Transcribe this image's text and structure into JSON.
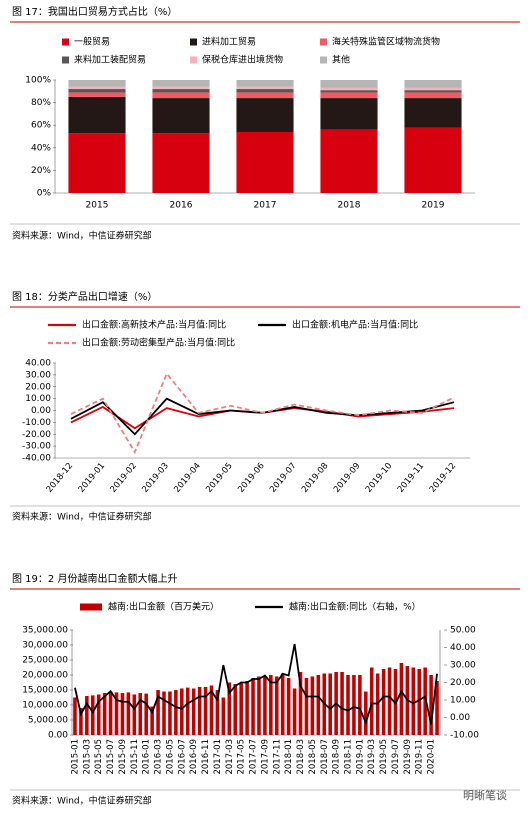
{
  "chart_data": [
    {
      "type": "bar",
      "stacked": true,
      "title": "图 17：我国出口贸易方式占比（%）",
      "source": "资料来源：Wind，中信证券研究部",
      "categories": [
        "2015",
        "2016",
        "2017",
        "2018",
        "2019"
      ],
      "series": [
        {
          "name": "一般贸易",
          "color": "#d7000f",
          "values": [
            53,
            53,
            54,
            56,
            58
          ]
        },
        {
          "name": "进料加工贸易",
          "color": "#231815",
          "values": [
            32,
            31,
            30,
            28,
            26
          ]
        },
        {
          "name": "海关特殊监管区域物流货物",
          "color": "#f05a64",
          "values": [
            4,
            5,
            5,
            5,
            5
          ]
        },
        {
          "name": "来料加工装配贸易",
          "color": "#595757",
          "values": [
            3,
            3,
            3,
            2,
            2
          ]
        },
        {
          "name": "保税仓库进出境货物",
          "color": "#f4b3b8",
          "values": [
            2,
            2,
            2,
            2,
            2
          ]
        },
        {
          "name": "其他",
          "color": "#b5b5b6",
          "values": [
            6,
            6,
            6,
            7,
            7
          ]
        }
      ],
      "ylim": [
        0,
        100
      ],
      "yticks": [
        {
          "value": 0,
          "label": "0%"
        },
        {
          "value": 20,
          "label": "20%"
        },
        {
          "value": 40,
          "label": "40%"
        },
        {
          "value": 60,
          "label": "60%"
        },
        {
          "value": 80,
          "label": "80%"
        },
        {
          "value": 100,
          "label": "100%"
        }
      ]
    },
    {
      "type": "line",
      "title": "图 18：分类产品出口增速（%）",
      "source": "资料来源：Wind，中信证券研究部",
      "categories": [
        "2018-12",
        "2019-01",
        "2019-02",
        "2019-03",
        "2019-04",
        "2019-05",
        "2019-06",
        "2019-07",
        "2019-08",
        "2019-09",
        "2019-10",
        "2019-11",
        "2019-12"
      ],
      "series": [
        {
          "name": "出口金额:高新技术产品:当月值:同比",
          "color": "#d7000f",
          "linestyle": "solid",
          "values": [
            -10,
            3,
            -15,
            2,
            -5,
            0,
            -2,
            2,
            -1,
            -5,
            -3,
            -1,
            2
          ]
        },
        {
          "name": "出口金额:机电产品:当月值:同比",
          "color": "#000000",
          "linestyle": "solid",
          "values": [
            -7,
            7,
            -20,
            10,
            -3,
            0,
            -2,
            3,
            -2,
            -4,
            -2,
            0,
            7
          ]
        },
        {
          "name": "出口金额:劳动密集型产品:当月值:同比",
          "color": "#f08080",
          "linestyle": "dashed",
          "values": [
            -3,
            10,
            -35,
            31,
            -2,
            4,
            -2,
            5,
            0,
            -4,
            0,
            -2,
            11
          ]
        }
      ],
      "ylim": [
        -40,
        40
      ],
      "yticks": [
        {
          "value": -40,
          "label": "-40.00"
        },
        {
          "value": -30,
          "label": "-30.00"
        },
        {
          "value": -20,
          "label": "-20.00"
        },
        {
          "value": -10,
          "label": "-10.00"
        },
        {
          "value": 0,
          "label": "0.00"
        },
        {
          "value": 10,
          "label": "10.00"
        },
        {
          "value": 20,
          "label": "20.00"
        },
        {
          "value": 30,
          "label": "30.00"
        },
        {
          "value": 40,
          "label": "40.00"
        }
      ]
    },
    {
      "type": "combo",
      "title": "图 19：2 月份越南出口金额大幅上升",
      "source": "资料来源：Wind，中信证券研究部",
      "categories": [
        "2015-01",
        null,
        "2015-03",
        null,
        "2015-05",
        null,
        "2015-07",
        null,
        "2015-09",
        null,
        "2015-11",
        null,
        "2016-01",
        null,
        "2016-03",
        null,
        "2016-05",
        null,
        "2016-07",
        null,
        "2016-09",
        null,
        "2016-11",
        null,
        "2017-01",
        null,
        "2017-03",
        null,
        "2017-05",
        null,
        "2017-07",
        null,
        "2017-09",
        null,
        "2017-11",
        null,
        "2018-01",
        null,
        "2018-03",
        null,
        "2018-05",
        null,
        "2018-07",
        null,
        "2018-09",
        null,
        "2018-11",
        null,
        "2019-01",
        null,
        "2019-03",
        null,
        "2019-05",
        null,
        "2019-07",
        null,
        "2019-09",
        null,
        "2019-11",
        null,
        "2020-01",
        null
      ],
      "series": [
        {
          "name": "越南:出口金额（百万美元）",
          "color": "#c00000",
          "kind": "bar",
          "axis": "y",
          "values": [
            12500,
            9000,
            13000,
            13200,
            13500,
            14000,
            14500,
            14200,
            14000,
            14200,
            13500,
            14000,
            13800,
            9500,
            15000,
            14500,
            14500,
            15000,
            15500,
            15800,
            15500,
            16000,
            16000,
            16500,
            15000,
            12500,
            17500,
            17000,
            17500,
            18000,
            19000,
            19500,
            19500,
            20000,
            19500,
            20500,
            19000,
            15500,
            21000,
            19000,
            19500,
            20000,
            20500,
            20500,
            21000,
            21000,
            20000,
            20000,
            20000,
            14500,
            22500,
            20500,
            22000,
            22500,
            22000,
            24000,
            23000,
            22500,
            22000,
            22500,
            20000,
            18000
          ]
        },
        {
          "name": "越南:出口金额:同比（右轴，%）",
          "color": "#000000",
          "kind": "line",
          "axis": "y2",
          "values": [
            17,
            2,
            8,
            3,
            9,
            12,
            15,
            10,
            9,
            9,
            5,
            10,
            8,
            3,
            12,
            10,
            8,
            6,
            5,
            8,
            10,
            12,
            12,
            15,
            10,
            30,
            14,
            18,
            20,
            20,
            22,
            22,
            24,
            20,
            20,
            25,
            24,
            42,
            18,
            12,
            12,
            12,
            8,
            5,
            8,
            5,
            4,
            6,
            5,
            -3,
            8,
            8,
            12,
            12,
            8,
            15,
            10,
            8,
            10,
            12,
            -4,
            25
          ]
        }
      ],
      "ylim": [
        0,
        35000
      ],
      "yticks": [
        {
          "value": 0,
          "label": "0.00"
        },
        {
          "value": 5000,
          "label": "5,000.00"
        },
        {
          "value": 10000,
          "label": "10,000.00"
        },
        {
          "value": 15000,
          "label": "15,000.00"
        },
        {
          "value": 20000,
          "label": "20,000.00"
        },
        {
          "value": 25000,
          "label": "25,000.00"
        },
        {
          "value": 30000,
          "label": "30,000.00"
        },
        {
          "value": 35000,
          "label": "35,000.00"
        }
      ],
      "y2lim": [
        -10,
        50
      ],
      "y2ticks": [
        {
          "value": -10,
          "label": "-10.00"
        },
        {
          "value": 0,
          "label": "0.00"
        },
        {
          "value": 10,
          "label": "10.00"
        },
        {
          "value": 20,
          "label": "20.00"
        },
        {
          "value": 30,
          "label": "30.00"
        },
        {
          "value": 40,
          "label": "40.00"
        },
        {
          "value": 50,
          "label": "50.00"
        }
      ]
    }
  ],
  "watermark": "明晰笔谈"
}
